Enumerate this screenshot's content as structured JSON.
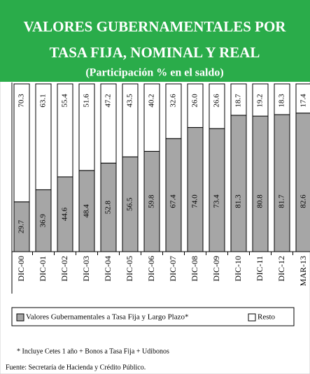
{
  "chart_data": {
    "type": "stacked_bar",
    "title": "VALORES GUBERNAMENTALES POR",
    "title_line2": "TASA FIJA, NOMINAL Y REAL",
    "subtitle": "(Participación % en el saldo)",
    "categories": [
      "DIC-00",
      "DIC-01",
      "DIC-02",
      "DIC-03",
      "DIC-04",
      "DIC-05",
      "DIC-06",
      "DIC-07",
      "DIC-08",
      "DIC-09",
      "DIC-10",
      "DIC-11",
      "DIC-12",
      "MAR-13"
    ],
    "series": [
      {
        "name": "Valores Gubernamentales  a Tasa Fija y Largo Plazo*",
        "color": "#a6a6a6",
        "values": [
          29.7,
          36.9,
          44.6,
          48.4,
          52.8,
          56.5,
          59.8,
          67.4,
          74.0,
          73.4,
          81.3,
          80.8,
          81.7,
          82.6
        ],
        "value_labels": [
          "29.7",
          "36.9",
          "44.6",
          "48.4",
          "52.8",
          "56.5",
          "59.8",
          "67.4",
          "74.0",
          "73.4",
          "81.3",
          "80.8",
          "81.7",
          "82.6"
        ]
      },
      {
        "name": "Resto",
        "color": "#ffffff",
        "values": [
          70.3,
          63.1,
          55.4,
          51.6,
          47.2,
          43.5,
          40.2,
          32.6,
          26.0,
          26.6,
          18.7,
          19.2,
          18.3,
          17.4
        ],
        "value_labels": [
          "70.3",
          "63.1",
          "55.4",
          "51.6",
          "47.2",
          "43.5",
          "40.2",
          "32.6",
          "26.0",
          "26.6",
          "18.7",
          "19.2",
          "18.3",
          "17.4"
        ]
      }
    ],
    "ylim": [
      0,
      100
    ],
    "notes": [
      "* Incluye Cetes 1 año + Bonos a Tasa Fija + Udibonos",
      "Fuente: Secretaría  de Hacienda  y Crédito Público."
    ]
  }
}
